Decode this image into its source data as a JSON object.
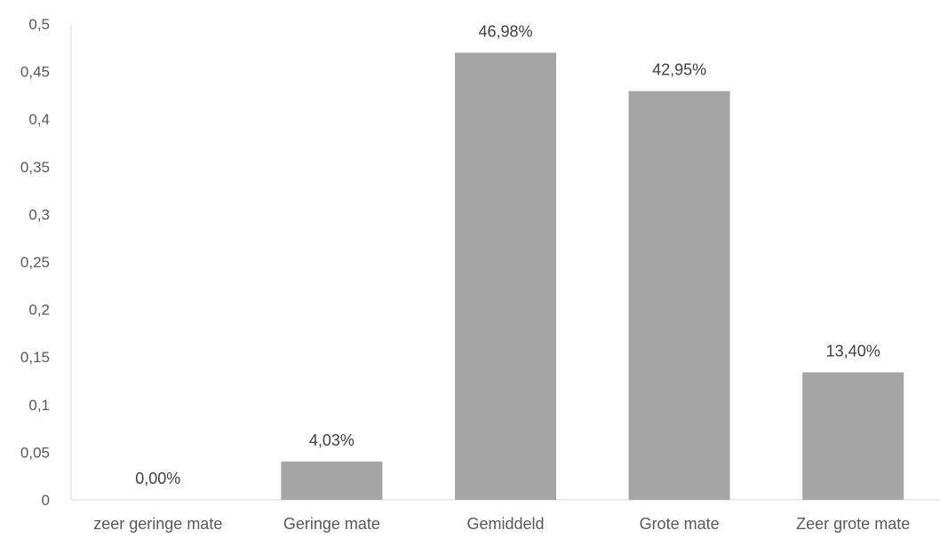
{
  "chart_data": {
    "type": "bar",
    "categories": [
      "zeer geringe mate",
      "Geringe mate",
      "Gemiddeld",
      "Grote mate",
      "Zeer grote mate"
    ],
    "values": [
      0.0,
      0.0403,
      0.4698,
      0.4295,
      0.134
    ],
    "data_labels": [
      "0,00%",
      "4,03%",
      "46,98%",
      "42,95%",
      "13,40%"
    ],
    "y_ticks": [
      0,
      0.05,
      0.1,
      0.15,
      0.2,
      0.25,
      0.3,
      0.35,
      0.4,
      0.45,
      0.5
    ],
    "y_tick_labels": [
      "0",
      "0,05",
      "0,1",
      "0,15",
      "0,2",
      "0,25",
      "0,3",
      "0,35",
      "0,4",
      "0,45",
      "0,5"
    ],
    "ylim": [
      0,
      0.5
    ],
    "title": "",
    "xlabel": "",
    "ylabel": "",
    "grid": false,
    "legend": "none",
    "colors": {
      "bar": "#a5a5a5",
      "axis": "#d9d9d9",
      "tick_text": "#595959",
      "label_text": "#404040"
    }
  }
}
